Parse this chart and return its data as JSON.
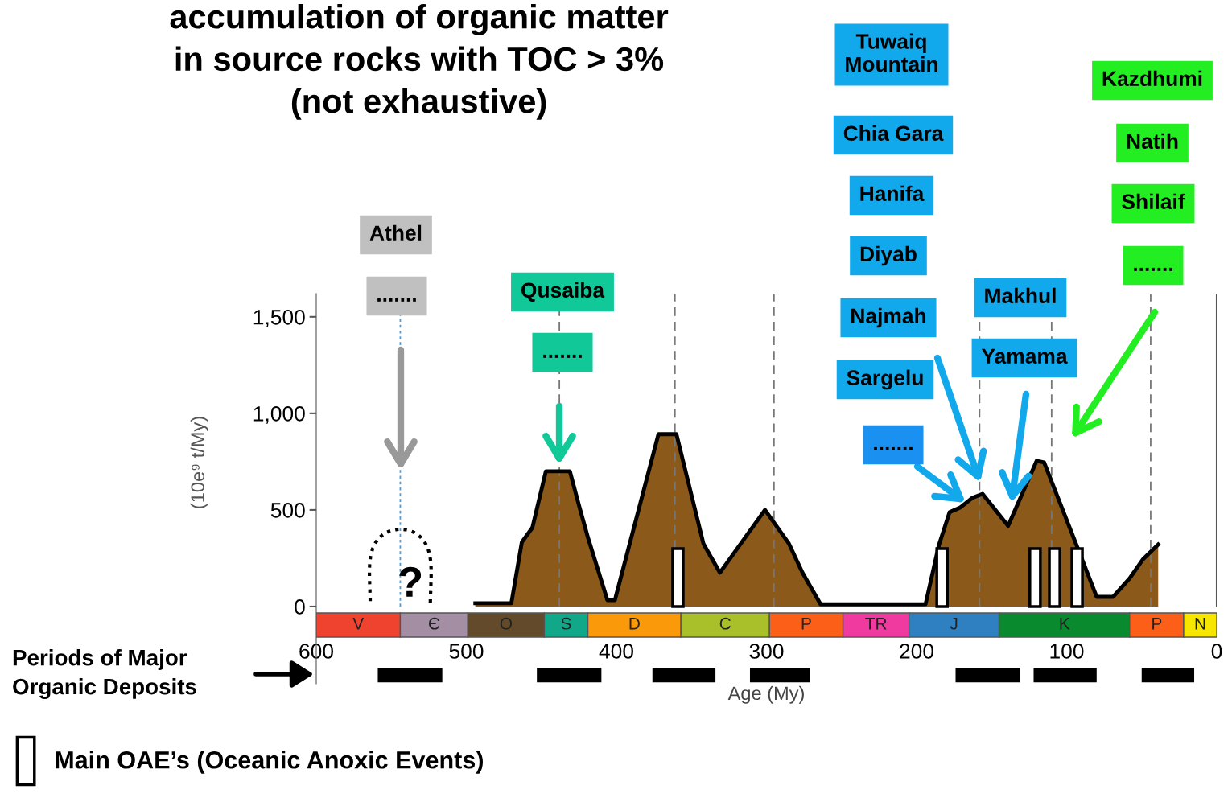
{
  "chart_data": {
    "type": "area",
    "title": "accumulation of organic matter\nin source rocks with TOC > 3%\n(not exhaustive)",
    "xlabel": "Age (My)",
    "ylabel": "(10e⁹ t/My)",
    "xlim": [
      600,
      0
    ],
    "ylim": [
      -400,
      1620
    ],
    "xticks": [
      600,
      500,
      400,
      300,
      200,
      100,
      0
    ],
    "yticks": [
      0,
      500,
      {
        "value": 1000,
        "label": "1,000"
      },
      {
        "value": 1500,
        "label": "1,500"
      }
    ],
    "grid": false,
    "legend": "bottom left",
    "series": [
      {
        "color": "#8b5a1a",
        "x": [
          494,
          470,
          463,
          456,
          447,
          431,
          425,
          419,
          406,
          401,
          372,
          360,
          342,
          331,
          301,
          285,
          276,
          264,
          194,
          185,
          178,
          171,
          163,
          156,
          139,
          120,
          115,
          94,
          80,
          69,
          58,
          49,
          39
        ],
        "values": [
          17,
          17,
          333,
          408,
          700,
          700,
          525,
          358,
          33,
          33,
          892,
          892,
          325,
          175,
          500,
          325,
          175,
          12,
          12,
          321,
          488,
          512,
          562,
          583,
          417,
          754,
          746,
          329,
          50,
          50,
          146,
          246,
          321
        ]
      },
      {
        "type": "line",
        "color": "#000000",
        "x": [
          559,
          516,
          515,
          453,
          410,
          409,
          376,
          334,
          333,
          311,
          271,
          270,
          174,
          131,
          130,
          122,
          80,
          79,
          50,
          15
        ],
        "values": [
          -355,
          -355,
          null,
          -355,
          -355,
          null,
          -355,
          -355,
          null,
          -355,
          -355,
          null,
          -355,
          -355,
          null,
          -355,
          -355,
          null,
          -355,
          -355
        ]
      },
      {
        "type": "bar",
        "name": "Main OAE’s (Oceanic Anoxic Events)",
        "color": "#ffffff",
        "x": [
          359,
          183,
          121,
          108,
          93
        ],
        "values": [
          300,
          300,
          300,
          300,
          300
        ]
      }
    ],
    "ref_lines": [
      {
        "axis": "x",
        "value": 544,
        "color": "#4a9ee0",
        "line_style": "dotted"
      },
      {
        "axis": "x",
        "value": 438,
        "color": "#777777",
        "line_style": "dashed"
      },
      {
        "axis": "x",
        "value": 361,
        "color": "#777777",
        "line_style": "dashed"
      },
      {
        "axis": "x",
        "value": 295,
        "color": "#777777",
        "line_style": "dashed"
      },
      {
        "axis": "x",
        "value": 158,
        "color": "#777777",
        "line_style": "dashed"
      },
      {
        "axis": "x",
        "value": 110,
        "color": "#777777",
        "line_style": "dashed"
      },
      {
        "axis": "x",
        "value": 44,
        "color": "#777777",
        "line_style": "dashed"
      }
    ],
    "bands": [
      {
        "axis": "x",
        "from": 600,
        "to": 544,
        "label": "V",
        "color": "#f0432f"
      },
      {
        "axis": "x",
        "from": 544,
        "to": 499,
        "label": "Є",
        "color": "#a48ea4"
      },
      {
        "axis": "x",
        "from": 499,
        "to": 448,
        "label": "O",
        "color": "#634a2a"
      },
      {
        "axis": "x",
        "from": 448,
        "to": 419,
        "label": "S",
        "color": "#11a88a"
      },
      {
        "axis": "x",
        "from": 419,
        "to": 357,
        "label": "D",
        "color": "#fa9a0a"
      },
      {
        "axis": "x",
        "from": 357,
        "to": 298,
        "label": "C",
        "color": "#a9c02a"
      },
      {
        "axis": "x",
        "from": 298,
        "to": 249,
        "label": "P",
        "color": "#fb5f18"
      },
      {
        "axis": "x",
        "from": 249,
        "to": 205,
        "label": "TR",
        "color": "#f03aa0"
      },
      {
        "axis": "x",
        "from": 205,
        "to": 145,
        "label": "J",
        "color": "#2e80c0"
      },
      {
        "axis": "x",
        "from": 145,
        "to": 58,
        "label": "K",
        "color": "#0a8a2e"
      },
      {
        "axis": "x",
        "from": 58,
        "to": 22,
        "label": "P",
        "color": "#fb5f18"
      },
      {
        "axis": "x",
        "from": 22,
        "to": 0,
        "label": "N",
        "color": "#f7e600"
      }
    ],
    "annotations": [
      "Athel",
      ".......",
      "Qusaiba",
      ".......",
      "Tuwaiq\nMountain",
      "Chia Gara",
      "Hanifa",
      "Diyab",
      "Najmah",
      "Sargelu",
      ".......",
      "Makhul",
      "Yamama",
      "Kazdhumi",
      "Natih",
      "Shilaif",
      ".......",
      "?",
      "Periods of Major\nOrganic Deposits"
    ]
  }
}
